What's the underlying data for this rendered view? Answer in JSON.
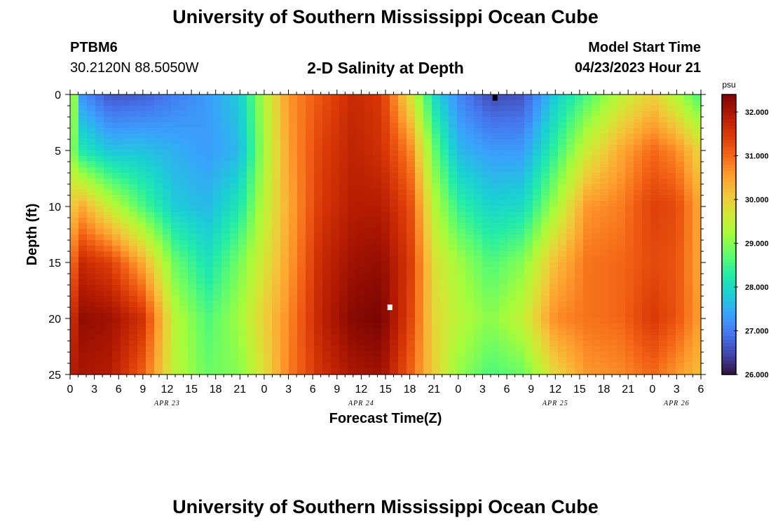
{
  "header": {
    "title": "University of Southern Mississippi Ocean Cube",
    "station_id": "PTBM6",
    "station_coords": "30.2120N  88.5050W",
    "plot_title": "2-D Salinity at Depth",
    "model_start_label": "Model Start Time",
    "model_start_value": "04/23/2023 Hour 21"
  },
  "footer": {
    "title": "University of Southern Mississippi Ocean Cube"
  },
  "chart_data": {
    "type": "heatmap",
    "title": "2-D Salinity at Depth",
    "xlabel": "Forecast Time(Z)",
    "ylabel": "Depth (ft)",
    "x_tick_labels": [
      "0",
      "3",
      "6",
      "9",
      "12",
      "15",
      "18",
      "21",
      "0",
      "3",
      "6",
      "9",
      "12",
      "15",
      "18",
      "21",
      "0",
      "3",
      "6",
      "9",
      "12",
      "15",
      "18",
      "21",
      "0",
      "3",
      "6"
    ],
    "x_hours": [
      0,
      78
    ],
    "date_labels": [
      "APR 23",
      "APR 24",
      "APR 25",
      "APR 26"
    ],
    "y_ticks": [
      0,
      5,
      10,
      15,
      20,
      25
    ],
    "ylim": [
      0,
      25
    ],
    "y_inverted": true,
    "colorbar": {
      "unit": "psu",
      "ticks": [
        "26.000",
        "27.000",
        "28.000",
        "29.000",
        "30.000",
        "31.000",
        "32.000"
      ],
      "range": [
        26.0,
        32.4
      ],
      "colors": [
        "#30123b",
        "#4145ab",
        "#4675ed",
        "#39a2fc",
        "#1bcfd4",
        "#24eca6",
        "#61fc6c",
        "#a4fc3b",
        "#d1e834",
        "#f3c63a",
        "#fe9b2d",
        "#f36315",
        "#d93806",
        "#b11901",
        "#7a0403"
      ]
    },
    "profiles": [
      {
        "hour": 0,
        "s": [
          30.0,
          29.2,
          30.0,
          30.8,
          31.5,
          31.9
        ]
      },
      {
        "hour": 1.5,
        "s": [
          27.2,
          28.2,
          30.4,
          31.7,
          32.2,
          32.0
        ]
      },
      {
        "hour": 5,
        "s": [
          26.6,
          27.7,
          29.5,
          31.4,
          32.1,
          31.9
        ]
      },
      {
        "hour": 9,
        "s": [
          26.7,
          27.7,
          28.6,
          30.4,
          31.6,
          31.1
        ]
      },
      {
        "hour": 13,
        "s": [
          27.0,
          27.5,
          27.8,
          28.8,
          29.4,
          29.4
        ]
      },
      {
        "hour": 17,
        "s": [
          27.3,
          27.3,
          27.6,
          28.1,
          28.6,
          28.8
        ]
      },
      {
        "hour": 21,
        "s": [
          27.8,
          27.6,
          28.2,
          28.9,
          29.2,
          29.0
        ]
      },
      {
        "hour": 24,
        "s": [
          29.3,
          29.2,
          29.4,
          29.7,
          30.0,
          29.8
        ]
      },
      {
        "hour": 27,
        "s": [
          30.6,
          30.5,
          30.4,
          30.5,
          30.7,
          30.8
        ]
      },
      {
        "hour": 31,
        "s": [
          31.2,
          31.4,
          31.5,
          31.7,
          31.8,
          31.6
        ]
      },
      {
        "hour": 35,
        "s": [
          31.7,
          31.8,
          31.9,
          32.1,
          32.3,
          32.0
        ]
      },
      {
        "hour": 38.5,
        "s": [
          31.5,
          31.6,
          31.9,
          32.2,
          32.4,
          32.1
        ]
      },
      {
        "hour": 42,
        "s": [
          29.8,
          30.8,
          31.3,
          31.5,
          31.4,
          31.1
        ]
      },
      {
        "hour": 45,
        "s": [
          28.0,
          28.8,
          29.4,
          29.8,
          29.9,
          30.0
        ]
      },
      {
        "hour": 48,
        "s": [
          27.1,
          27.6,
          28.4,
          29.2,
          29.4,
          29.1
        ]
      },
      {
        "hour": 52,
        "s": [
          26.5,
          27.3,
          27.9,
          28.6,
          29.0,
          28.6
        ]
      },
      {
        "hour": 56,
        "s": [
          26.6,
          27.3,
          28.0,
          29.0,
          29.5,
          28.8
        ]
      },
      {
        "hour": 60,
        "s": [
          27.8,
          28.4,
          29.2,
          30.2,
          30.7,
          29.9
        ]
      },
      {
        "hour": 64,
        "s": [
          28.6,
          29.6,
          30.6,
          30.9,
          30.9,
          30.6
        ]
      },
      {
        "hour": 68,
        "s": [
          29.4,
          30.4,
          30.8,
          31.0,
          31.0,
          30.7
        ]
      },
      {
        "hour": 72,
        "s": [
          30.0,
          31.0,
          31.4,
          31.3,
          31.5,
          31.0
        ]
      },
      {
        "hour": 75,
        "s": [
          29.3,
          30.7,
          31.3,
          31.2,
          31.2,
          30.6
        ]
      },
      {
        "hour": 78,
        "s": [
          28.5,
          29.9,
          30.4,
          30.4,
          30.5,
          30.2
        ]
      }
    ],
    "markers": [
      {
        "hour": 52.5,
        "depth": 0.3,
        "color": "#000000"
      },
      {
        "hour": 39.5,
        "depth": 19.0,
        "color": "#ffffff"
      }
    ]
  }
}
